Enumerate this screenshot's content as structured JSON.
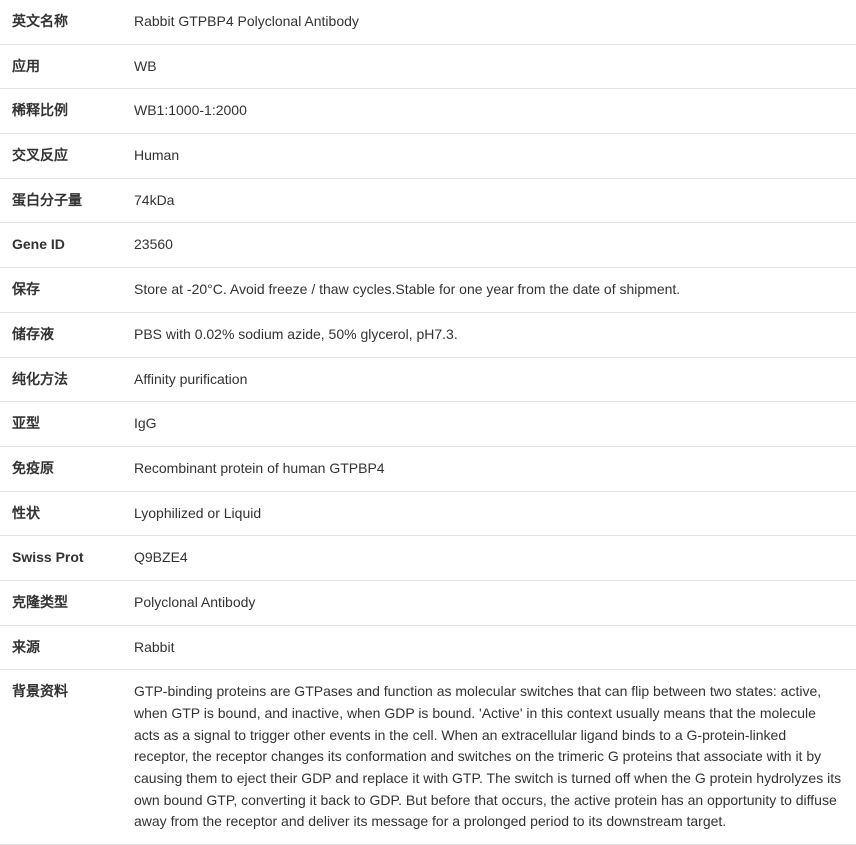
{
  "rows": [
    {
      "label": "英文名称",
      "value": "Rabbit GTPBP4 Polyclonal Antibody"
    },
    {
      "label": "应用",
      "value": "WB"
    },
    {
      "label": "稀释比例",
      "value": "WB1:1000-1:2000"
    },
    {
      "label": "交叉反应",
      "value": "Human"
    },
    {
      "label": "蛋白分子量",
      "value": "74kDa"
    },
    {
      "label": "Gene ID",
      "value": "23560"
    },
    {
      "label": "保存",
      "value": "Store at -20°C. Avoid freeze / thaw cycles.Stable for one year from the date of shipment."
    },
    {
      "label": "储存液",
      "value": "PBS with 0.02% sodium azide, 50% glycerol, pH7.3."
    },
    {
      "label": "纯化方法",
      "value": "Affinity purification"
    },
    {
      "label": "亚型",
      "value": "IgG"
    },
    {
      "label": "免疫原",
      "value": "Recombinant protein of human GTPBP4"
    },
    {
      "label": "性状",
      "value": "Lyophilized or Liquid"
    },
    {
      "label": "Swiss Prot",
      "value": "Q9BZE4"
    },
    {
      "label": "克隆类型",
      "value": "Polyclonal Antibody"
    },
    {
      "label": "来源",
      "value": "Rabbit"
    },
    {
      "label": "背景资料",
      "value": "GTP-binding proteins are GTPases and function as molecular switches that can flip between two states: active, when GTP is bound, and inactive, when GDP is bound. 'Active' in this context usually means that the molecule acts as a signal to trigger other events in the cell. When an extracellular ligand binds to a G-protein-linked receptor, the receptor changes its conformation and switches on the trimeric G proteins that associate with it by causing them to eject their GDP and replace it with GTP. The switch is turned off when the G protein hydrolyzes its own bound GTP, converting it back to GDP. But before that occurs, the active protein has an opportunity to diffuse away from the receptor and deliver its message for a prolonged period to its downstream target."
    }
  ]
}
